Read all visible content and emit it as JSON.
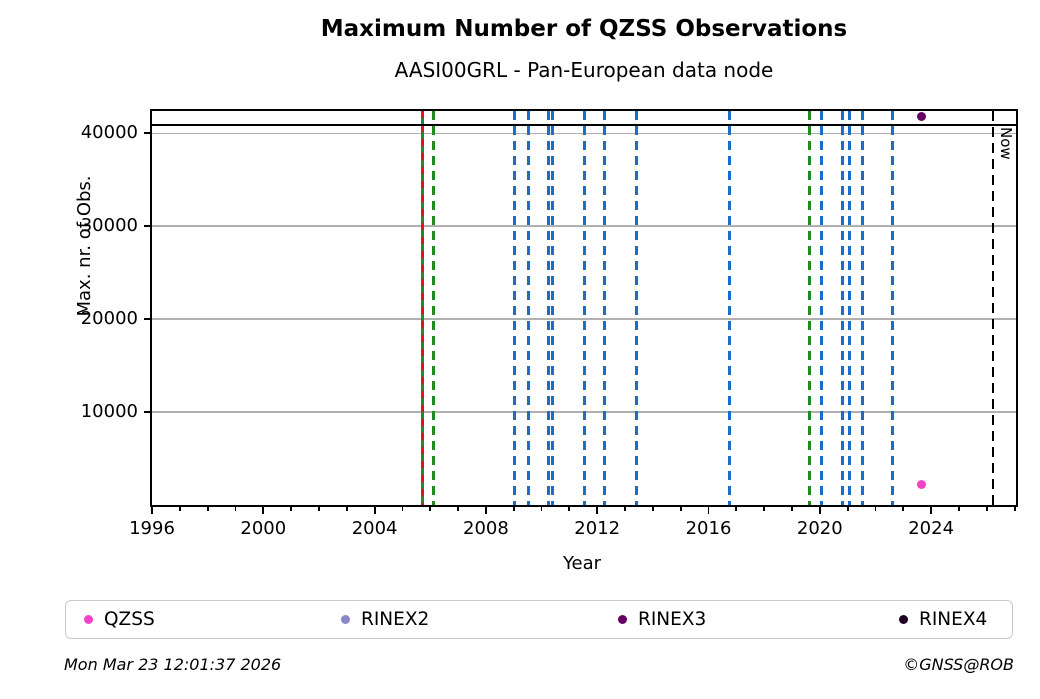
{
  "title": "Maximum Number of QZSS Observations",
  "subtitle": "AASI00GRL - Pan-European data node",
  "footer": {
    "timestamp": "Mon Mar 23 12:01:37 2026",
    "credit": "©GNSS@ROB"
  },
  "chart_data": {
    "type": "scatter",
    "title": "Maximum Number of QZSS Observations",
    "subtitle": "AASI00GRL - Pan-European data node",
    "xlabel": "Year",
    "ylabel": "Max. nr. of Obs.",
    "xlim": [
      1996,
      2027.05
    ],
    "ylim": [
      0,
      42400
    ],
    "xticks_major": [
      1996,
      2000,
      2004,
      2008,
      2012,
      2016,
      2020,
      2024
    ],
    "xticks_minor_every": 1,
    "yticks": [
      10000,
      20000,
      30000,
      40000
    ],
    "grid": {
      "axis": "y",
      "color": "#b0b0b0"
    },
    "colors": {
      "blue": "#1a6ec8",
      "green": "#228a22",
      "red": "#e41414",
      "black": "#000000"
    },
    "series": [
      {
        "name": "QZSS",
        "color": "#f441c7",
        "points": [
          {
            "x": 2023.65,
            "y": 2200
          }
        ]
      },
      {
        "name": "RINEX2",
        "color": "#8888c8",
        "points": []
      },
      {
        "name": "RINEX3",
        "color": "#650065",
        "points": [
          {
            "x": 2023.65,
            "y": 41800
          }
        ]
      },
      {
        "name": "RINEX4",
        "color": "#1f0021",
        "points": []
      }
    ],
    "hlines": [
      {
        "y": 40900,
        "color": "#000000"
      }
    ],
    "vlines": [
      {
        "x": 2005.73,
        "color": "green",
        "style": "solid"
      },
      {
        "x": 2005.73,
        "color": "red",
        "style": "dashed"
      },
      {
        "x": 2006.12,
        "color": "green",
        "style": "dashed"
      },
      {
        "x": 2009.03,
        "color": "blue",
        "style": "dashed"
      },
      {
        "x": 2009.53,
        "color": "blue",
        "style": "dashed"
      },
      {
        "x": 2010.25,
        "color": "blue",
        "style": "dashed"
      },
      {
        "x": 2010.4,
        "color": "blue",
        "style": "dashed"
      },
      {
        "x": 2011.54,
        "color": "blue",
        "style": "dashed"
      },
      {
        "x": 2012.26,
        "color": "blue",
        "style": "dashed"
      },
      {
        "x": 2013.41,
        "color": "blue",
        "style": "dashed"
      },
      {
        "x": 2016.75,
        "color": "blue",
        "style": "dashed"
      },
      {
        "x": 2019.62,
        "color": "green",
        "style": "dashed"
      },
      {
        "x": 2020.05,
        "color": "blue",
        "style": "dashed"
      },
      {
        "x": 2020.8,
        "color": "blue",
        "style": "dashed"
      },
      {
        "x": 2021.06,
        "color": "blue",
        "style": "dashed"
      },
      {
        "x": 2021.52,
        "color": "blue",
        "style": "dashed"
      },
      {
        "x": 2022.6,
        "color": "blue",
        "style": "dashed"
      },
      {
        "x": 2026.22,
        "color": "black",
        "style": "dashed",
        "label": "Now"
      }
    ],
    "legend": {
      "position": "bottom",
      "entries": [
        "QZSS",
        "RINEX2",
        "RINEX3",
        "RINEX4"
      ]
    }
  }
}
